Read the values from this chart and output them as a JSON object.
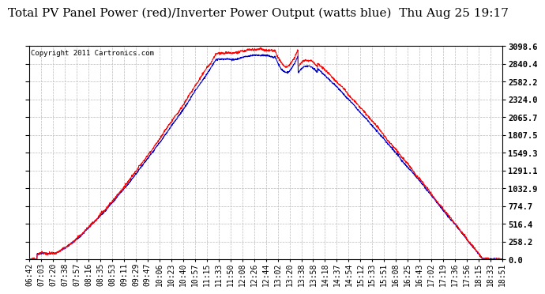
{
  "title": "Total PV Panel Power (red)/Inverter Power Output (watts blue)  Thu Aug 25 19:17",
  "copyright": "Copyright 2011 Cartronics.com",
  "ylim": [
    0.0,
    3098.6
  ],
  "yticks": [
    0.0,
    258.2,
    516.4,
    774.7,
    1032.9,
    1291.1,
    1549.3,
    1807.5,
    2065.7,
    2324.0,
    2582.2,
    2840.4,
    3098.6
  ],
  "xtick_labels": [
    "06:42",
    "07:03",
    "07:20",
    "07:38",
    "07:57",
    "08:16",
    "08:35",
    "08:53",
    "09:11",
    "09:29",
    "09:47",
    "10:06",
    "10:23",
    "10:40",
    "10:57",
    "11:15",
    "11:33",
    "11:50",
    "12:08",
    "12:26",
    "12:44",
    "13:02",
    "13:20",
    "13:38",
    "13:58",
    "14:18",
    "14:37",
    "14:54",
    "15:12",
    "15:33",
    "15:51",
    "16:08",
    "16:25",
    "16:43",
    "17:02",
    "17:19",
    "17:36",
    "17:56",
    "18:15",
    "18:33",
    "18:51"
  ],
  "background_color": "#ffffff",
  "plot_bg_color": "#ffffff",
  "grid_color": "#bbbbbb",
  "red_color": "#ff0000",
  "blue_color": "#0000cc",
  "title_fontsize": 11,
  "tick_fontsize": 7,
  "copyright_fontsize": 6.5
}
